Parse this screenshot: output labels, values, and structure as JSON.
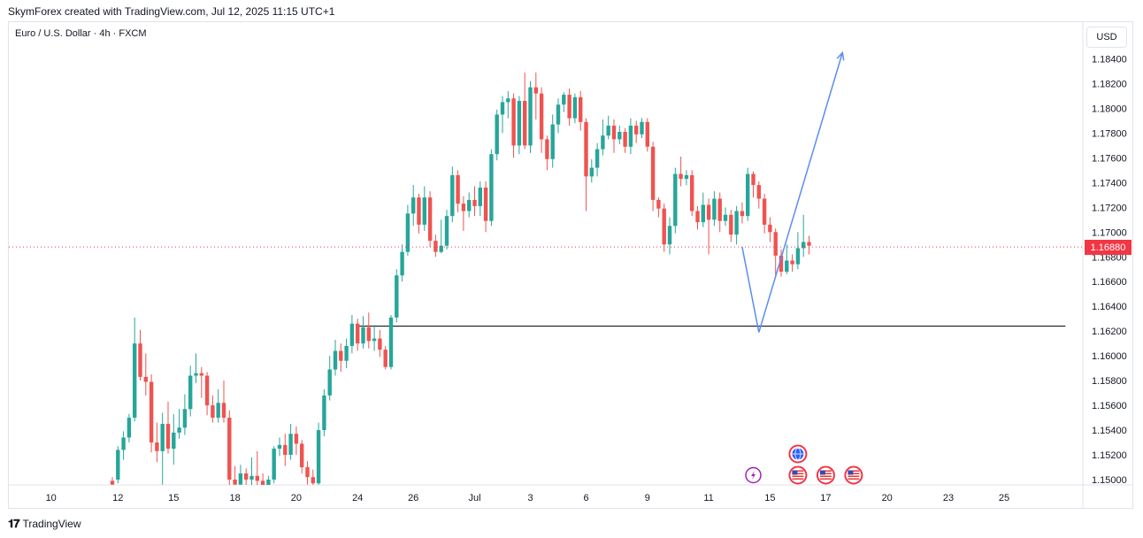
{
  "header": {
    "attribution": "SkymForex created with TradingView.com, Jul 12, 2025 11:15 UTC+1"
  },
  "symbol": {
    "title": "Euro / U.S. Dollar · 4h · FXCM"
  },
  "currency_button": "USD",
  "footer": {
    "brand": "TradingView"
  },
  "colors": {
    "up": "#26a69a",
    "down": "#ef5350",
    "projection": "#5b8def",
    "current_price_line": "#f23645",
    "support": "#131722"
  },
  "chart_data": {
    "type": "candlestick",
    "title": "Euro / U.S. Dollar · 4h · FXCM",
    "ylim": [
      1.149,
      1.1855
    ],
    "y_ticks": [
      "1.18400",
      "1.18200",
      "1.18000",
      "1.17800",
      "1.17600",
      "1.17400",
      "1.17200",
      "1.17000",
      "1.16800",
      "1.16600",
      "1.16400",
      "1.16200",
      "1.16000",
      "1.15800",
      "1.15600",
      "1.15400",
      "1.15200",
      "1.15000"
    ],
    "x_ticks": [
      {
        "label": "10",
        "i": -11
      },
      {
        "label": "12",
        "i": 1
      },
      {
        "label": "15",
        "i": 11
      },
      {
        "label": "18",
        "i": 22
      },
      {
        "label": "20",
        "i": 33
      },
      {
        "label": "24",
        "i": 44
      },
      {
        "label": "26",
        "i": 54
      },
      {
        "label": "Jul",
        "i": 65
      },
      {
        "label": "3",
        "i": 75
      },
      {
        "label": "6",
        "i": 85
      },
      {
        "label": "9",
        "i": 96
      },
      {
        "label": "11",
        "i": 107
      },
      {
        "label": "15",
        "i": 118
      },
      {
        "label": "17",
        "i": 128
      },
      {
        "label": "20",
        "i": 139
      },
      {
        "label": "23",
        "i": 150
      },
      {
        "label": "25",
        "i": 160
      }
    ],
    "current_price": "1.16880",
    "current_value": 1.1688,
    "support_level": 1.1624,
    "support_range": [
      44,
      171
    ],
    "projection": [
      [
        113,
        1.1688
      ],
      [
        116,
        1.1619
      ],
      [
        131,
        1.1845
      ]
    ],
    "event_icons": [
      {
        "i": 115,
        "type": "lightning"
      },
      {
        "i": 123,
        "type": "globe",
        "row": 1
      },
      {
        "i": 123,
        "type": "us-flag"
      },
      {
        "i": 128,
        "type": "us-flag"
      },
      {
        "i": 133,
        "type": "us-flag"
      }
    ],
    "candles": [
      [
        1.1499,
        1.1496,
        1.1502,
        1.1494
      ],
      [
        1.15,
        1.1524,
        1.1527,
        1.1497
      ],
      [
        1.1524,
        1.1534,
        1.1539,
        1.1516
      ],
      [
        1.1534,
        1.155,
        1.1553,
        1.153
      ],
      [
        1.155,
        1.161,
        1.1631,
        1.1547
      ],
      [
        1.161,
        1.1583,
        1.1621,
        1.158
      ],
      [
        1.1583,
        1.1579,
        1.1602,
        1.1568
      ],
      [
        1.1579,
        1.153,
        1.1585,
        1.1522
      ],
      [
        1.153,
        1.1523,
        1.1546,
        1.1514
      ],
      [
        1.1523,
        1.1545,
        1.1554,
        1.1496
      ],
      [
        1.1545,
        1.1525,
        1.1563,
        1.1521
      ],
      [
        1.1525,
        1.1538,
        1.1553,
        1.1512
      ],
      [
        1.1538,
        1.1542,
        1.1557,
        1.1533
      ],
      [
        1.1542,
        1.1557,
        1.1569,
        1.1536
      ],
      [
        1.1557,
        1.1584,
        1.1592,
        1.1551
      ],
      [
        1.1584,
        1.1586,
        1.1602,
        1.1578
      ],
      [
        1.1586,
        1.1584,
        1.1591,
        1.1566
      ],
      [
        1.1584,
        1.156,
        1.1587,
        1.1552
      ],
      [
        1.156,
        1.155,
        1.1568,
        1.1546
      ],
      [
        1.155,
        1.1562,
        1.1573,
        1.1546
      ],
      [
        1.1562,
        1.155,
        1.158,
        1.1546
      ],
      [
        1.155,
        1.15,
        1.1556,
        1.1495
      ],
      [
        1.15,
        1.1496,
        1.1511,
        1.149
      ],
      [
        1.1496,
        1.1505,
        1.1512,
        1.1493
      ],
      [
        1.1505,
        1.15,
        1.1509,
        1.1493
      ],
      [
        1.15,
        1.1503,
        1.1518,
        1.1492
      ],
      [
        1.1503,
        1.1499,
        1.1523,
        1.1492
      ],
      [
        1.1499,
        1.1495,
        1.1505,
        1.1491
      ],
      [
        1.1495,
        1.15,
        1.1503,
        1.1493
      ],
      [
        1.15,
        1.1525,
        1.1527,
        1.1497
      ],
      [
        1.1525,
        1.1528,
        1.1534,
        1.1519
      ],
      [
        1.1528,
        1.152,
        1.1537,
        1.1511
      ],
      [
        1.152,
        1.1537,
        1.1545,
        1.1516
      ],
      [
        1.1537,
        1.1529,
        1.1543,
        1.152
      ],
      [
        1.1529,
        1.151,
        1.1532,
        1.1505
      ],
      [
        1.151,
        1.1502,
        1.1515,
        1.1496
      ],
      [
        1.1502,
        1.1497,
        1.1508,
        1.1494
      ],
      [
        1.1497,
        1.154,
        1.1546,
        1.1495
      ],
      [
        1.154,
        1.1568,
        1.1573,
        1.1535
      ],
      [
        1.1568,
        1.1589,
        1.16,
        1.1564
      ],
      [
        1.1589,
        1.1604,
        1.1613,
        1.1584
      ],
      [
        1.1604,
        1.1596,
        1.161,
        1.1587
      ],
      [
        1.1596,
        1.1608,
        1.1614,
        1.159
      ],
      [
        1.1608,
        1.1626,
        1.1633,
        1.1602
      ],
      [
        1.1626,
        1.161,
        1.163,
        1.1604
      ],
      [
        1.161,
        1.1623,
        1.1632,
        1.1606
      ],
      [
        1.1623,
        1.1612,
        1.1635,
        1.1606
      ],
      [
        1.1612,
        1.1614,
        1.1625,
        1.1604
      ],
      [
        1.1614,
        1.1605,
        1.1621,
        1.1599
      ],
      [
        1.1605,
        1.1591,
        1.1608,
        1.1589
      ],
      [
        1.1591,
        1.1631,
        1.1633,
        1.1589
      ],
      [
        1.1631,
        1.1665,
        1.167,
        1.1627
      ],
      [
        1.1665,
        1.1684,
        1.169,
        1.166
      ],
      [
        1.1684,
        1.1715,
        1.1722,
        1.1681
      ],
      [
        1.1715,
        1.1728,
        1.1738,
        1.1705
      ],
      [
        1.1728,
        1.1706,
        1.1731,
        1.1699
      ],
      [
        1.1706,
        1.1728,
        1.1737,
        1.1701
      ],
      [
        1.1728,
        1.1693,
        1.1733,
        1.1688
      ],
      [
        1.1693,
        1.1684,
        1.1698,
        1.168
      ],
      [
        1.1684,
        1.1689,
        1.171,
        1.1683
      ],
      [
        1.1689,
        1.1713,
        1.1718,
        1.1686
      ],
      [
        1.1713,
        1.1746,
        1.1753,
        1.1708
      ],
      [
        1.1746,
        1.1723,
        1.175,
        1.1716
      ],
      [
        1.1723,
        1.1717,
        1.1729,
        1.1701
      ],
      [
        1.1717,
        1.1726,
        1.1732,
        1.1712
      ],
      [
        1.1726,
        1.1721,
        1.1737,
        1.1713
      ],
      [
        1.1721,
        1.1736,
        1.1741,
        1.1713
      ],
      [
        1.1736,
        1.1709,
        1.1741,
        1.17
      ],
      [
        1.1709,
        1.1763,
        1.1767,
        1.1705
      ],
      [
        1.1763,
        1.1795,
        1.1799,
        1.1758
      ],
      [
        1.1795,
        1.1805,
        1.181,
        1.178
      ],
      [
        1.1805,
        1.1808,
        1.1814,
        1.1792
      ],
      [
        1.1808,
        1.177,
        1.1812,
        1.176
      ],
      [
        1.177,
        1.1806,
        1.181,
        1.1763
      ],
      [
        1.1806,
        1.177,
        1.1829,
        1.1767
      ],
      [
        1.177,
        1.1817,
        1.1822,
        1.1764
      ],
      [
        1.1817,
        1.1812,
        1.1829,
        1.1791
      ],
      [
        1.1812,
        1.1775,
        1.1817,
        1.1764
      ],
      [
        1.1775,
        1.1759,
        1.1778,
        1.175
      ],
      [
        1.1759,
        1.1787,
        1.1795,
        1.1752
      ],
      [
        1.1787,
        1.1803,
        1.1808,
        1.178
      ],
      [
        1.1803,
        1.1811,
        1.1813,
        1.1797
      ],
      [
        1.1811,
        1.1792,
        1.1816,
        1.1786
      ],
      [
        1.1792,
        1.1809,
        1.1812,
        1.1788
      ],
      [
        1.1809,
        1.1789,
        1.1814,
        1.1782
      ],
      [
        1.1789,
        1.1745,
        1.1792,
        1.1717
      ],
      [
        1.1745,
        1.1752,
        1.1759,
        1.174
      ],
      [
        1.1752,
        1.1767,
        1.1772,
        1.1745
      ],
      [
        1.1767,
        1.1778,
        1.1791,
        1.1762
      ],
      [
        1.1778,
        1.1786,
        1.1794,
        1.1775
      ],
      [
        1.1786,
        1.1775,
        1.1791,
        1.1764
      ],
      [
        1.1775,
        1.1781,
        1.1786,
        1.1771
      ],
      [
        1.1781,
        1.1769,
        1.1784,
        1.1764
      ],
      [
        1.1769,
        1.1786,
        1.1792,
        1.1763
      ],
      [
        1.1786,
        1.1779,
        1.179,
        1.1772
      ],
      [
        1.1779,
        1.1789,
        1.1792,
        1.1776
      ],
      [
        1.1789,
        1.1769,
        1.1792,
        1.1765
      ],
      [
        1.1769,
        1.1726,
        1.1773,
        1.1717
      ],
      [
        1.1726,
        1.1719,
        1.1728,
        1.1712
      ],
      [
        1.1719,
        1.169,
        1.1723,
        1.1684
      ],
      [
        1.169,
        1.1705,
        1.1712,
        1.1682
      ],
      [
        1.1705,
        1.1747,
        1.1752,
        1.1699
      ],
      [
        1.1747,
        1.1743,
        1.1761,
        1.1737
      ],
      [
        1.1743,
        1.1746,
        1.175,
        1.1738
      ],
      [
        1.1746,
        1.1717,
        1.175,
        1.1713
      ],
      [
        1.1717,
        1.1708,
        1.1721,
        1.1702
      ],
      [
        1.1708,
        1.1722,
        1.1732,
        1.1704
      ],
      [
        1.1722,
        1.171,
        1.1727,
        1.1682
      ],
      [
        1.171,
        1.1727,
        1.1733,
        1.1705
      ],
      [
        1.1727,
        1.1709,
        1.1732,
        1.17
      ],
      [
        1.1709,
        1.1714,
        1.172,
        1.1705
      ],
      [
        1.1714,
        1.1698,
        1.1718,
        1.1692
      ],
      [
        1.1698,
        1.1717,
        1.1721,
        1.169
      ],
      [
        1.1717,
        1.1713,
        1.1724,
        1.1707
      ],
      [
        1.1713,
        1.1747,
        1.1752,
        1.1709
      ],
      [
        1.1747,
        1.1738,
        1.1749,
        1.1728
      ],
      [
        1.1738,
        1.1727,
        1.1741,
        1.1719
      ],
      [
        1.1727,
        1.1706,
        1.1731,
        1.1699
      ],
      [
        1.1706,
        1.17,
        1.1712,
        1.1692
      ],
      [
        1.17,
        1.1681,
        1.1703,
        1.1663
      ],
      [
        1.1681,
        1.1668,
        1.1686,
        1.1664
      ],
      [
        1.1668,
        1.1677,
        1.169,
        1.1666
      ],
      [
        1.1677,
        1.1674,
        1.1682,
        1.1668
      ],
      [
        1.1674,
        1.1687,
        1.17,
        1.167
      ],
      [
        1.1687,
        1.1692,
        1.1714,
        1.168
      ],
      [
        1.1692,
        1.1689,
        1.1697,
        1.1682
      ]
    ]
  }
}
